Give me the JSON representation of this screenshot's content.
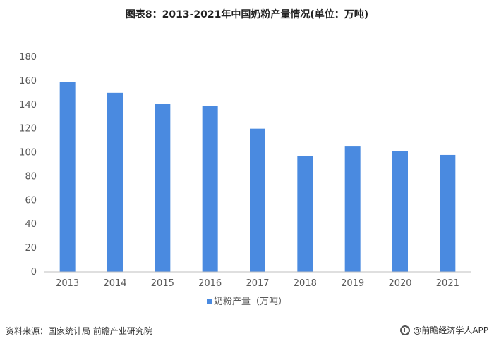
{
  "title": "图表8：2013-2021年中国奶粉产量情况(单位：万吨)",
  "source": "资料来源：国家统计局 前瞻产业研究院",
  "brand": "@前瞻经济学人APP",
  "colors": {
    "bar": "#4a8ae0",
    "axis": "#bfbfbf"
  },
  "chart_data": {
    "type": "bar",
    "title": "图表8：2013-2021年中国奶粉产量情况(单位：万吨)",
    "categories": [
      "2013",
      "2014",
      "2015",
      "2016",
      "2017",
      "2018",
      "2019",
      "2020",
      "2021"
    ],
    "series": [
      {
        "name": "奶粉产量（万吨）",
        "values": [
          159,
          150,
          141,
          139,
          120,
          97,
          105,
          101,
          98
        ]
      }
    ],
    "yticks": [
      "0",
      "20",
      "40",
      "60",
      "80",
      "100",
      "120",
      "140",
      "160",
      "180"
    ],
    "ylim": [
      0,
      180
    ],
    "grid": false,
    "legend": "bottom-center"
  }
}
